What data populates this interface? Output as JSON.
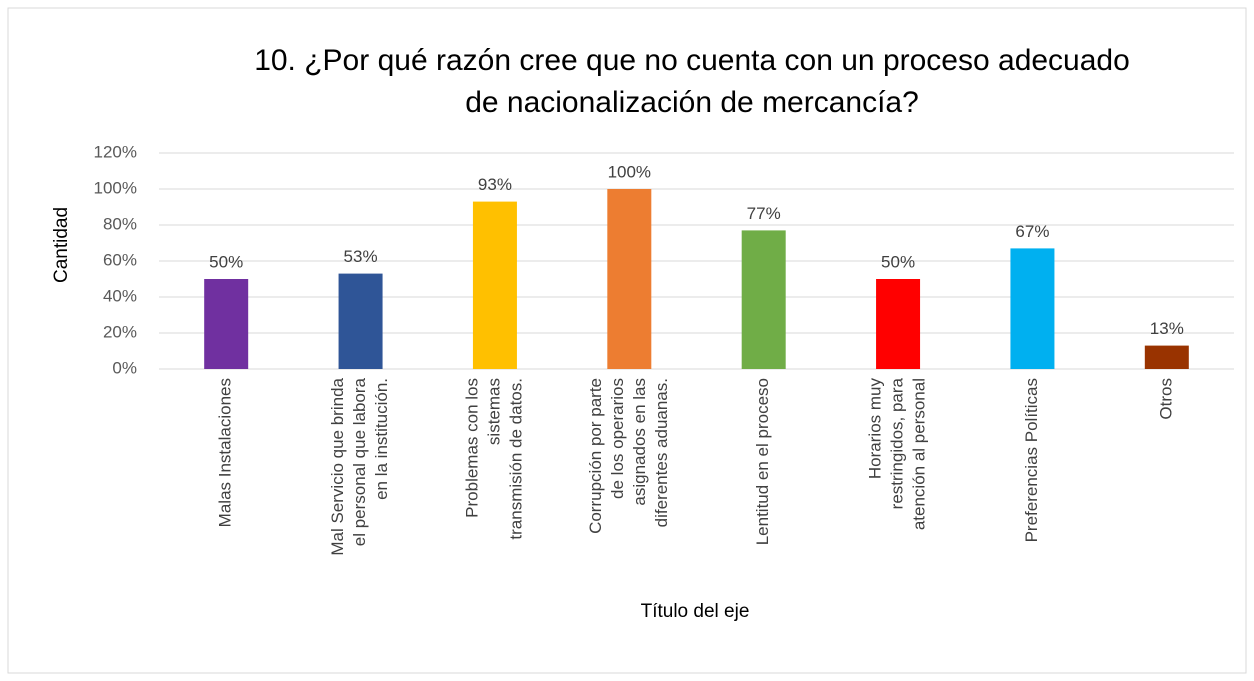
{
  "chart_data": {
    "type": "bar",
    "title": [
      "10. ¿Por qué razón cree que no cuenta con un proceso adecuado",
      "de nacionalización de mercancía?"
    ],
    "y_label": "Cantidad",
    "x_label": "Título del eje",
    "categories": [
      [
        "Malas Instalaciones"
      ],
      [
        "Mal Servicio que brinda",
        "el personal que labora",
        "en la institución."
      ],
      [
        "Problemas con los",
        "sistemas",
        "transmisión de datos."
      ],
      [
        "Corrupción por parte",
        "de los operarios",
        "asignados en las",
        "diferentes aduanas."
      ],
      [
        "Lentitud en el proceso"
      ],
      [
        "Horarios muy",
        "restringidos, para",
        "atención al personal"
      ],
      [
        "Preferencias Políticas"
      ],
      [
        "Otros"
      ]
    ],
    "values": [
      50,
      53,
      93,
      100,
      77,
      50,
      67,
      13
    ],
    "value_labels": [
      "50%",
      "53%",
      "93%",
      "100%",
      "77%",
      "50%",
      "67%",
      "13%"
    ],
    "colors": [
      "#7030a0",
      "#2f5597",
      "#ffc000",
      "#ed7d31",
      "#70ad47",
      "#ff0000",
      "#00b0f0",
      "#993300"
    ],
    "ylim": [
      0,
      120
    ],
    "yticks": [
      {
        "value": 0,
        "label": "0%"
      },
      {
        "value": 20,
        "label": "20%"
      },
      {
        "value": 40,
        "label": "40%"
      },
      {
        "value": 60,
        "label": "60%"
      },
      {
        "value": 80,
        "label": "80%"
      },
      {
        "value": 100,
        "label": "100%"
      },
      {
        "value": 120,
        "label": "120%"
      }
    ],
    "grid": true
  }
}
